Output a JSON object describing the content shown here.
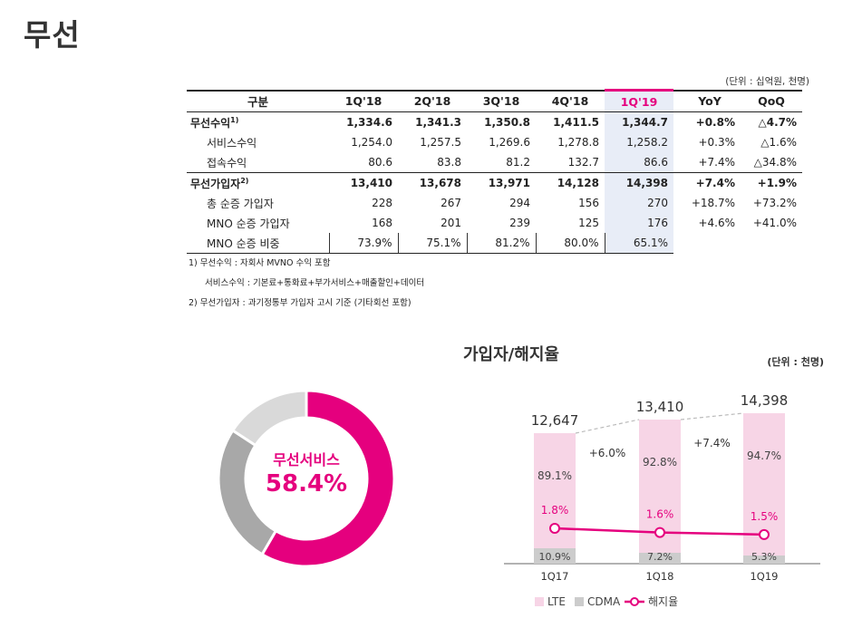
{
  "page_title": "무선",
  "table_unit": "(단위 : 십억원, 천명)",
  "table": {
    "headers": [
      "구분",
      "1Q'18",
      "2Q'18",
      "3Q'18",
      "4Q'18",
      "1Q'19",
      "YoY",
      "QoQ"
    ],
    "rows": [
      {
        "label": "무선수익",
        "sup": "1)",
        "values": [
          "1,334.6",
          "1,341.3",
          "1,350.8",
          "1,411.5",
          "1,344.7"
        ],
        "yoy": "+0.8%",
        "qoq": "△4.7%"
      },
      {
        "label": "서비스수익",
        "sup": "",
        "values": [
          "1,254.0",
          "1,257.5",
          "1,269.6",
          "1,278.8",
          "1,258.2"
        ],
        "yoy": "+0.3%",
        "qoq": "△1.6%"
      },
      {
        "label": "접속수익",
        "sup": "",
        "values": [
          "80.6",
          "83.8",
          "81.2",
          "132.7",
          "86.6"
        ],
        "yoy": "+7.4%",
        "qoq": "△34.8%"
      },
      {
        "label": "무선가입자",
        "sup": "2)",
        "values": [
          "13,410",
          "13,678",
          "13,971",
          "14,128",
          "14,398"
        ],
        "yoy": "+7.4%",
        "qoq": "+1.9%"
      },
      {
        "label": "총 순증 가입자",
        "sup": "",
        "values": [
          "228",
          "267",
          "294",
          "156",
          "270"
        ],
        "yoy": "+18.7%",
        "qoq": "+73.2%"
      },
      {
        "label": "MNO 순증 가입자",
        "sup": "",
        "values": [
          "168",
          "201",
          "239",
          "125",
          "176"
        ],
        "yoy": "+4.6%",
        "qoq": "+41.0%"
      },
      {
        "label": "MNO 순증 비중",
        "sup": "",
        "values": [
          "73.9%",
          "75.1%",
          "81.2%",
          "80.0%",
          "65.1%"
        ],
        "yoy": "",
        "qoq": ""
      }
    ]
  },
  "notes": {
    "note1": "1) 무선수익 : 자회사 MVNO 수익 포함",
    "note1b": "서비스수익 : 기본료+통화료+부가서비스+매출할인+데이터",
    "note2": "2) 무선가입자 : 과기정통부 가입자 고시 기준 (기타회선 포함)"
  },
  "chart_data": [
    {
      "type": "pie",
      "labels": [
        "무선서비스",
        "",
        ""
      ],
      "values": [
        58.4,
        25.8,
        15.8
      ],
      "colors": [
        "#e5007e",
        "#a8a8a8",
        "#d9d9d9"
      ],
      "center_label": "무선서비스",
      "center_value": "58.4%"
    },
    {
      "type": "bar",
      "title": "가입자/해지율",
      "unit": "(단위 : 천명)",
      "categories": [
        "1Q17",
        "1Q18",
        "1Q19"
      ],
      "totals": [
        "12,647",
        "13,410",
        "14,398"
      ],
      "lte_share": [
        "89.1%",
        "92.8%",
        "94.7%"
      ],
      "cdma_share": [
        "10.9%",
        "7.2%",
        "5.3%"
      ],
      "churn": [
        1.8,
        1.6,
        1.5
      ],
      "churn_labels": [
        "1.8%",
        "1.6%",
        "1.5%"
      ],
      "growth": [
        "+6.0%",
        "+7.4%"
      ],
      "legend": [
        "LTE",
        "CDMA",
        "해지율"
      ],
      "colors": {
        "lte": "#f7d5e6",
        "cdma": "#cccccc",
        "churn": "#e5007e"
      }
    }
  ]
}
